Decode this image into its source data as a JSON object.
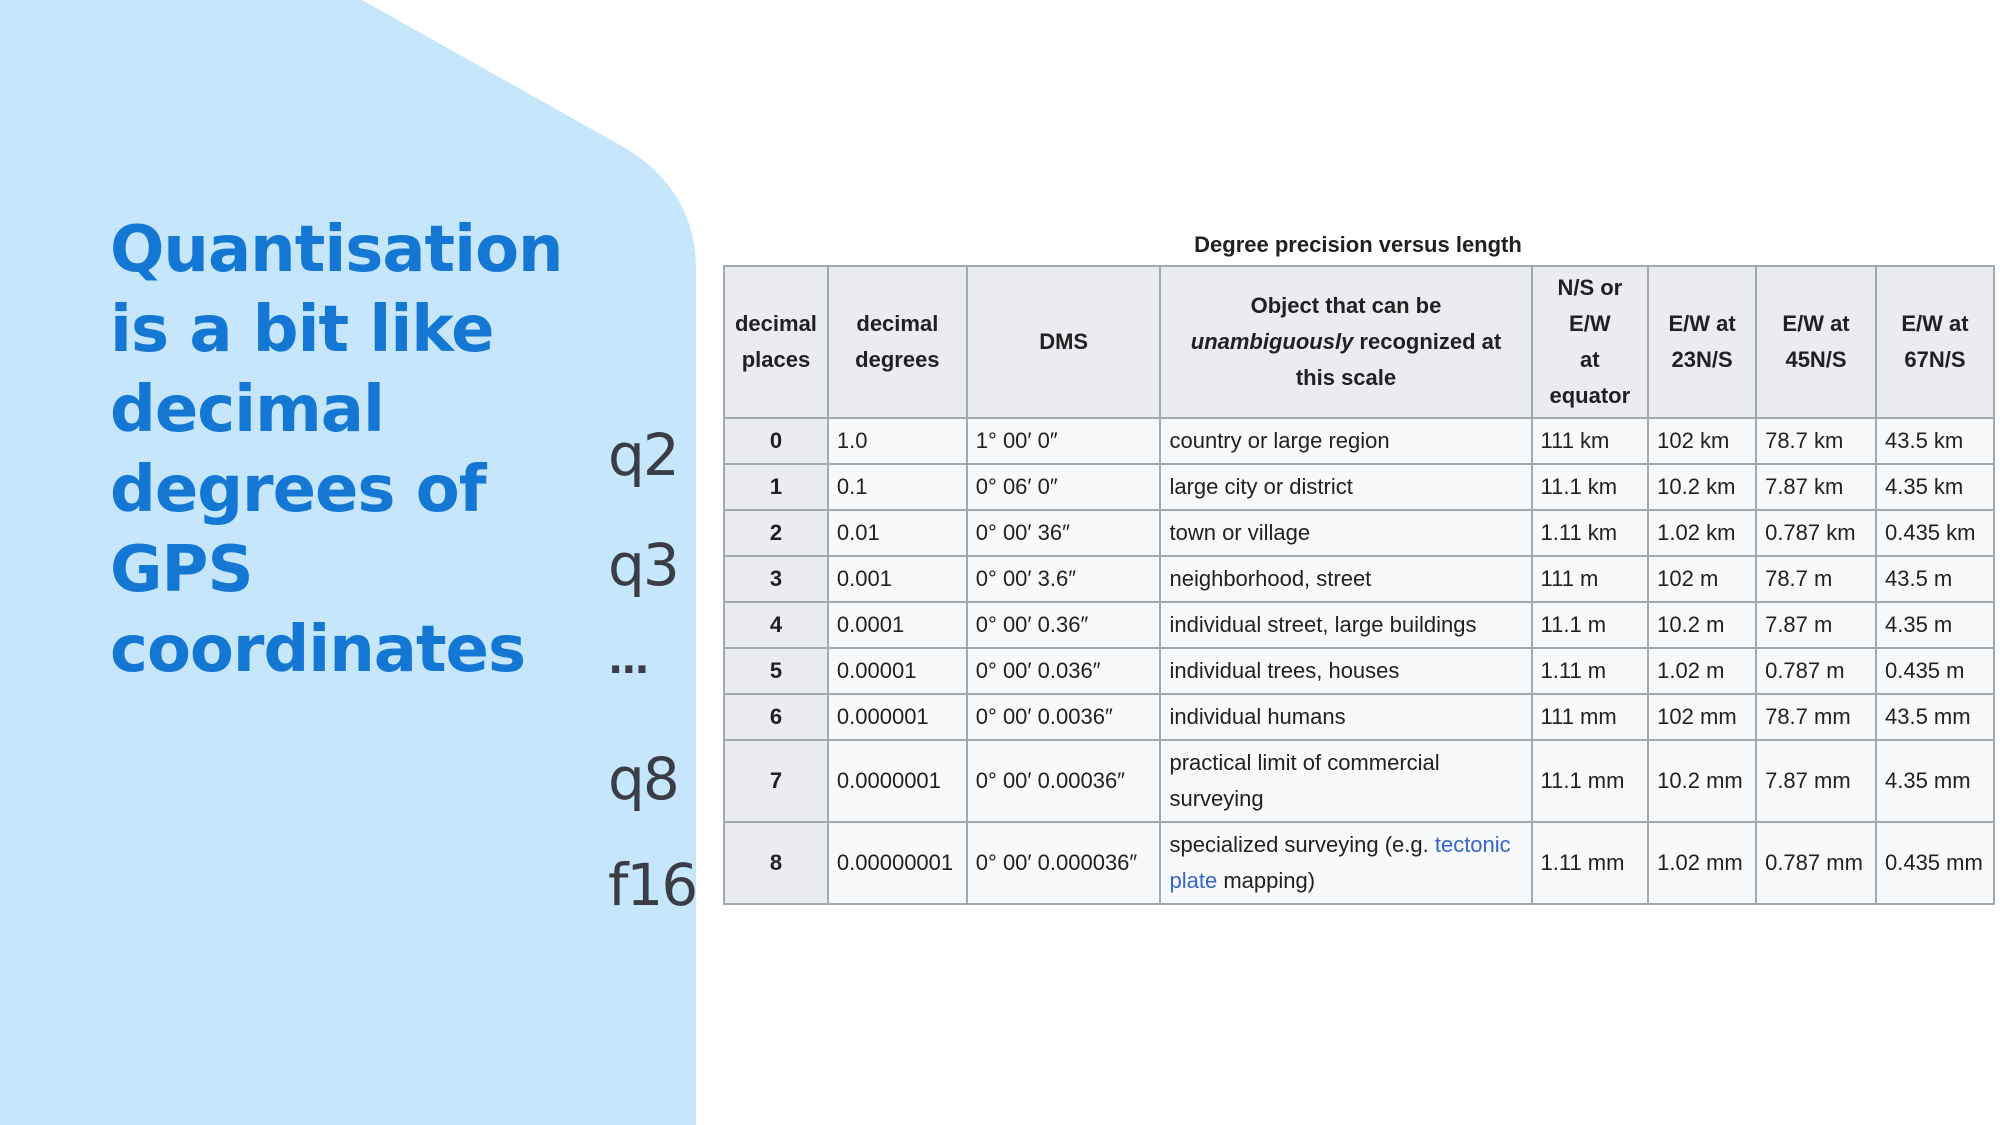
{
  "slide": {
    "bg_color": "#c6e6fb",
    "accent": "#1477d4",
    "headline_lines": [
      "Quantisation",
      "is a bit like",
      "decimal",
      "degrees of",
      "GPS",
      "coordinates"
    ],
    "quant_labels": [
      "q2",
      "q3",
      "...",
      "q8",
      "f16"
    ]
  },
  "table": {
    "caption": "Degree precision versus length",
    "headers": {
      "decimal_places_1": "decimal",
      "decimal_places_2": "places",
      "decimal_degrees_1": "decimal",
      "decimal_degrees_2": "degrees",
      "dms": "DMS",
      "object_1": "Object that can be",
      "object_em": "unambiguously",
      "object_2": " recognized at",
      "object_3": "this scale",
      "ns_1": "N/S or",
      "ns_2": "E/W",
      "ns_3": "at",
      "ns_4": "equator",
      "ew23_1": "E/W at",
      "ew23_2": "23N/S",
      "ew45_1": "E/W at",
      "ew45_2": "45N/S",
      "ew67_1": "E/W at",
      "ew67_2": "67N/S"
    },
    "rows": [
      [
        "0",
        "1.0",
        "1° 00′ 0″",
        "country or large region",
        "111 km",
        "102 km",
        "78.7 km",
        "43.5 km"
      ],
      [
        "1",
        "0.1",
        "0° 06′ 0″",
        "large city or district",
        "11.1 km",
        "10.2 km",
        "7.87 km",
        "4.35 km"
      ],
      [
        "2",
        "0.01",
        "0° 00′ 36″",
        "town or village",
        "1.11 km",
        "1.02 km",
        "0.787 km",
        "0.435 km"
      ],
      [
        "3",
        "0.001",
        "0° 00′ 3.6″",
        "neighborhood, street",
        "111 m",
        "102 m",
        "78.7 m",
        "43.5 m"
      ],
      [
        "4",
        "0.0001",
        "0° 00′ 0.36″",
        "individual street, large buildings",
        "11.1 m",
        "10.2 m",
        "7.87 m",
        "4.35 m"
      ],
      [
        "5",
        "0.00001",
        "0° 00′ 0.036″",
        "individual trees, houses",
        "1.11 m",
        "1.02 m",
        "0.787 m",
        "0.435 m"
      ],
      [
        "6",
        "0.000001",
        "0° 00′ 0.0036″",
        "individual humans",
        "111 mm",
        "102 mm",
        "78.7 mm",
        "43.5 mm"
      ],
      [
        "7",
        "0.0000001",
        "0° 00′ 0.00036″",
        "practical limit of commercial surveying",
        "11.1 mm",
        "10.2 mm",
        "7.87 mm",
        "4.35 mm"
      ]
    ],
    "last_row": {
      "places": "8",
      "degrees": "0.00000001",
      "dms": "0° 00′ 0.000036″",
      "object_pre": "specialized surveying (e.g. ",
      "object_link": "tectonic plate",
      "object_post": " mapping)",
      "equator": "1.11 mm",
      "ew23": "1.02 mm",
      "ew45": "0.787 mm",
      "ew67": "0.435 mm"
    }
  }
}
